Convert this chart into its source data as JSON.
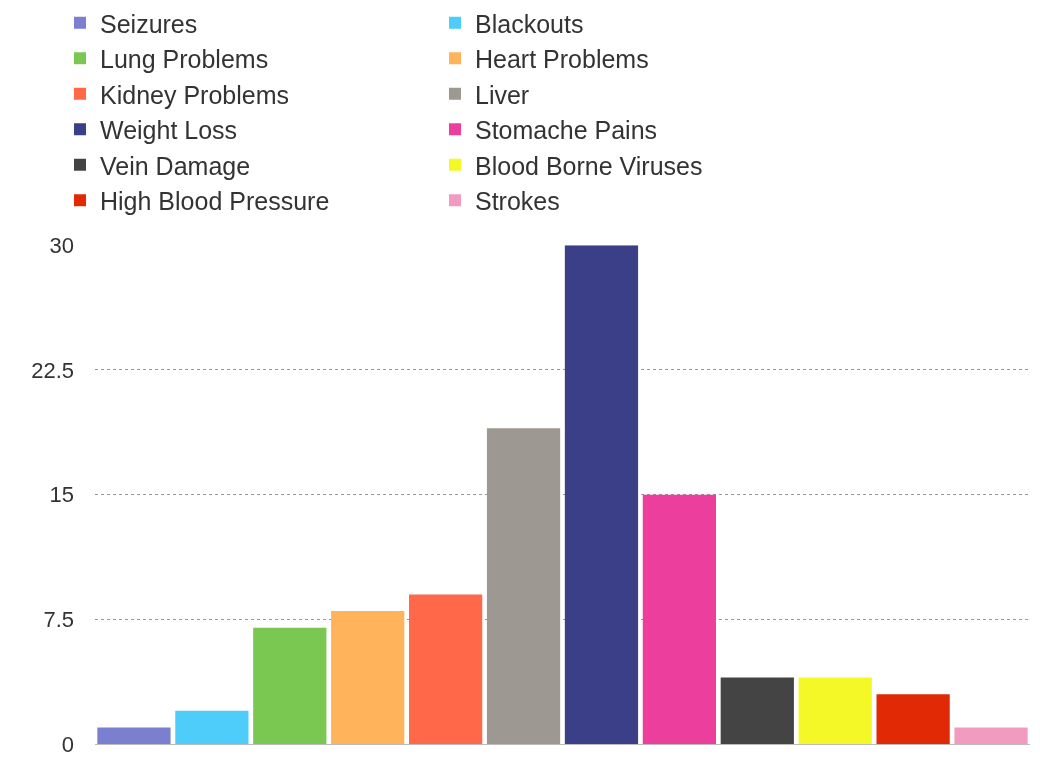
{
  "chart_data": {
    "type": "bar",
    "categories": [
      null,
      null,
      null,
      null,
      null,
      null,
      null,
      null,
      null,
      null,
      null,
      null
    ],
    "series": [
      {
        "name": "Seizures",
        "color": "#7b7fd0",
        "values": [
          1,
          null,
          null,
          null,
          null,
          null,
          null,
          null,
          null,
          null,
          null,
          null
        ]
      },
      {
        "name": "Blackouts",
        "color": "#4ecdfb",
        "values": [
          null,
          2,
          null,
          null,
          null,
          null,
          null,
          null,
          null,
          null,
          null,
          null
        ]
      },
      {
        "name": "Lung Problems",
        "color": "#7ac751",
        "values": [
          null,
          null,
          7,
          null,
          null,
          null,
          null,
          null,
          null,
          null,
          null,
          null
        ]
      },
      {
        "name": "Heart Problems",
        "color": "#ffb35b",
        "values": [
          null,
          null,
          null,
          8,
          null,
          null,
          null,
          null,
          null,
          null,
          null,
          null
        ]
      },
      {
        "name": "Kidney Problems",
        "color": "#ff694a",
        "values": [
          null,
          null,
          null,
          null,
          9,
          null,
          null,
          null,
          null,
          null,
          null,
          null
        ]
      },
      {
        "name": "Liver",
        "color": "#9d9892",
        "values": [
          null,
          null,
          null,
          null,
          null,
          19,
          null,
          null,
          null,
          null,
          null,
          null
        ]
      },
      {
        "name": "Weight Loss",
        "color": "#3b3f88",
        "values": [
          null,
          null,
          null,
          null,
          null,
          null,
          30,
          null,
          null,
          null,
          null,
          null
        ]
      },
      {
        "name": "Stomache Pains",
        "color": "#ec3f9d",
        "values": [
          null,
          null,
          null,
          null,
          null,
          null,
          null,
          15,
          null,
          null,
          null,
          null
        ]
      },
      {
        "name": "Vein Damage",
        "color": "#444444",
        "values": [
          null,
          null,
          null,
          null,
          null,
          null,
          null,
          null,
          4,
          null,
          null,
          null
        ]
      },
      {
        "name": "Blood Borne Viruses",
        "color": "#f4f826",
        "values": [
          null,
          null,
          null,
          null,
          null,
          null,
          null,
          null,
          null,
          4,
          null,
          null
        ]
      },
      {
        "name": "High Blood Pressure",
        "color": "#e12a05",
        "values": [
          null,
          null,
          null,
          null,
          null,
          null,
          null,
          null,
          null,
          null,
          3,
          null
        ]
      },
      {
        "name": "Strokes",
        "color": "#f39ac0",
        "values": [
          null,
          null,
          null,
          null,
          null,
          null,
          null,
          null,
          null,
          null,
          null,
          1
        ]
      }
    ],
    "ylim": [
      0,
      30
    ],
    "yticks": [
      0,
      7.5,
      15,
      22.5,
      30
    ],
    "grid": "y",
    "legend": "top",
    "tick_labels": "y"
  }
}
